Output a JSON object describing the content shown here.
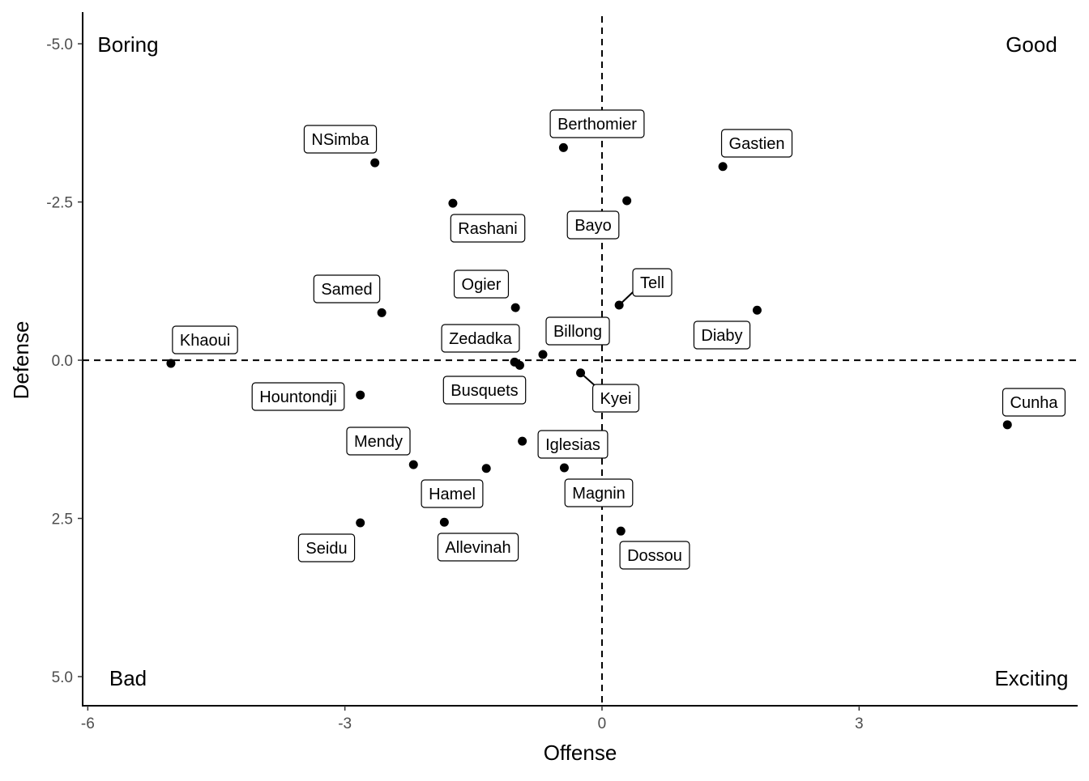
{
  "chart_data": {
    "type": "scatter",
    "title": "",
    "xlabel": "Offense",
    "ylabel": "Defense",
    "xlim": [
      -6.06,
      5.55
    ],
    "ylim": [
      -5.5,
      5.46
    ],
    "y_reversed": true,
    "grid": false,
    "x_ticks": [
      -6,
      -3,
      0,
      3
    ],
    "x_tick_labels": [
      "-6",
      "-3",
      "0",
      "3"
    ],
    "y_ticks": [
      -5,
      -2.5,
      0,
      2.5,
      5
    ],
    "y_tick_labels": [
      "-5.0",
      "-2.5",
      "0.0",
      "2.5",
      "5.0"
    ],
    "reference_lines": {
      "x": 0,
      "y": 0,
      "style": "dashed"
    },
    "quadrant_labels": {
      "top_left": "Boring",
      "top_right": "Good",
      "bottom_left": "Bad",
      "bottom_right": "Exciting"
    },
    "point_color": "#000000",
    "points": [
      {
        "label": "Khaoui",
        "x": -5.03,
        "y": 0.05
      },
      {
        "label": "NSimba",
        "x": -2.65,
        "y": -3.12
      },
      {
        "label": "Samed",
        "x": -2.57,
        "y": -0.75
      },
      {
        "label": "Hountondji",
        "x": -2.82,
        "y": 0.55
      },
      {
        "label": "Mendy",
        "x": -2.2,
        "y": 1.65
      },
      {
        "label": "Seidu",
        "x": -2.82,
        "y": 2.57
      },
      {
        "label": "Allevinah",
        "x": -1.84,
        "y": 2.56
      },
      {
        "label": "Hamel",
        "x": -1.35,
        "y": 1.71
      },
      {
        "label": "Rashani",
        "x": -1.74,
        "y": -2.48
      },
      {
        "label": "Ogier",
        "x": -1.01,
        "y": -0.83
      },
      {
        "label": "Zedadka",
        "x": -1.02,
        "y": 0.03
      },
      {
        "label": "Busquets",
        "x": -0.96,
        "y": 0.08
      },
      {
        "label": "Billong",
        "x": -0.69,
        "y": -0.09
      },
      {
        "label": "Iglesias",
        "x": -0.93,
        "y": 1.28
      },
      {
        "label": "Magnin",
        "x": -0.44,
        "y": 1.7
      },
      {
        "label": "Kyei",
        "x": -0.25,
        "y": 0.2
      },
      {
        "label": "Berthomier",
        "x": -0.45,
        "y": -3.36
      },
      {
        "label": "Bayo",
        "x": 0.29,
        "y": -2.52
      },
      {
        "label": "Tell",
        "x": 0.2,
        "y": -0.87
      },
      {
        "label": "Dossou",
        "x": 0.22,
        "y": 2.7
      },
      {
        "label": "Gastien",
        "x": 1.41,
        "y": -3.06
      },
      {
        "label": "Diaby",
        "x": 1.81,
        "y": -0.79
      },
      {
        "label": "Cunha",
        "x": 4.73,
        "y": 1.02
      }
    ]
  }
}
